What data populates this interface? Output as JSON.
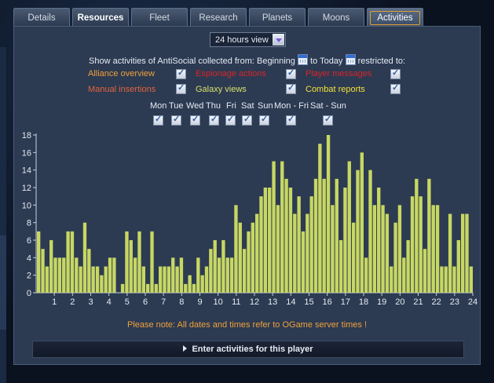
{
  "tabs": [
    "Details",
    "Resources",
    "Fleet",
    "Research",
    "Planets",
    "Moons",
    "Activities"
  ],
  "view_select": {
    "value": "24 hours view"
  },
  "filter": {
    "part1": "Show activities of AntiSocial collected from: Beginning",
    "part2": "to Today",
    "part3": "restricted to:",
    "options": [
      {
        "label": "Alliance overview",
        "color": "#f0a13a"
      },
      {
        "label": "Espionage actions",
        "color": "#d8262a"
      },
      {
        "label": "Player messages",
        "color": "#d8262a"
      },
      {
        "label": "Manual insertions",
        "color": "#e3643c"
      },
      {
        "label": "Galaxy views",
        "color": "#d7e06a"
      },
      {
        "label": "Combat reports",
        "color": "#f2e03a"
      }
    ]
  },
  "days": [
    "Mon",
    "Tue",
    "Wed",
    "Thu",
    "Fri",
    "Sat",
    "Sun",
    "Mon - Fri",
    "Sat - Sun"
  ],
  "chart_data": {
    "type": "bar",
    "bar_color": "#c7d763",
    "ylim": [
      0,
      18
    ],
    "y_ticks": [
      0,
      2,
      4,
      6,
      8,
      10,
      12,
      14,
      16,
      18
    ],
    "x_tick_labels": [
      "1",
      "2",
      "3",
      "4",
      "5",
      "6",
      "7",
      "8",
      "9",
      "10",
      "11",
      "12",
      "13",
      "14",
      "15",
      "16",
      "17",
      "18",
      "19",
      "20",
      "21",
      "22",
      "23",
      "24"
    ],
    "values": [
      7,
      5,
      3,
      6,
      4,
      4,
      4,
      7,
      7,
      4,
      3,
      8,
      5,
      3,
      3,
      2,
      3,
      4,
      4,
      0,
      1,
      7,
      6,
      4,
      7,
      3,
      1,
      7,
      1,
      3,
      3,
      3,
      4,
      3,
      4,
      1,
      2,
      1,
      4,
      2,
      3,
      5,
      6,
      4,
      6,
      4,
      4,
      10,
      8,
      5,
      7,
      8,
      9,
      11,
      12,
      12,
      15,
      10,
      15,
      13,
      12,
      9,
      11,
      7,
      9,
      11,
      13,
      17,
      13,
      18,
      10,
      13,
      6,
      12,
      15,
      8,
      14,
      16,
      4,
      14,
      10,
      12,
      10,
      9,
      3,
      8,
      10,
      4,
      6,
      11,
      13,
      11,
      5,
      13,
      10,
      10,
      3,
      3,
      9,
      3,
      6,
      9,
      9,
      3
    ]
  },
  "note": "Please note: All dates and times refer to OGame server times !",
  "enter_label": "Enter activities for this player"
}
